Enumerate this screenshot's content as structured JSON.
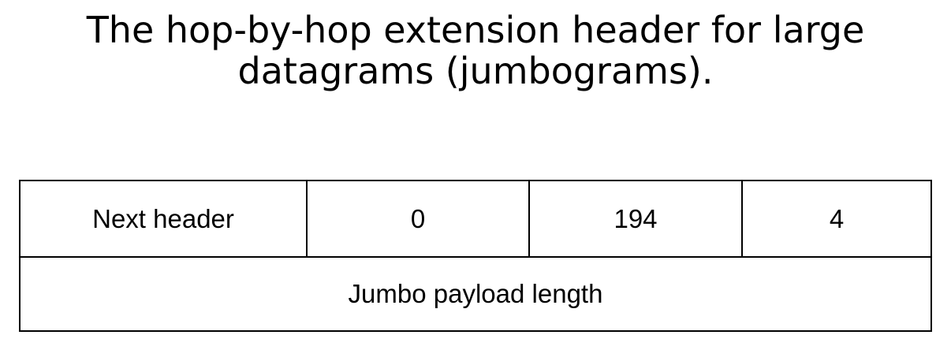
{
  "title": {
    "line1": "The hop-by-hop extension header for large",
    "line2": "datagrams (jumbograms)."
  },
  "fields": {
    "row1": [
      "Next header",
      "0",
      "194",
      "4"
    ],
    "row2": [
      "Jumbo payload length"
    ]
  }
}
